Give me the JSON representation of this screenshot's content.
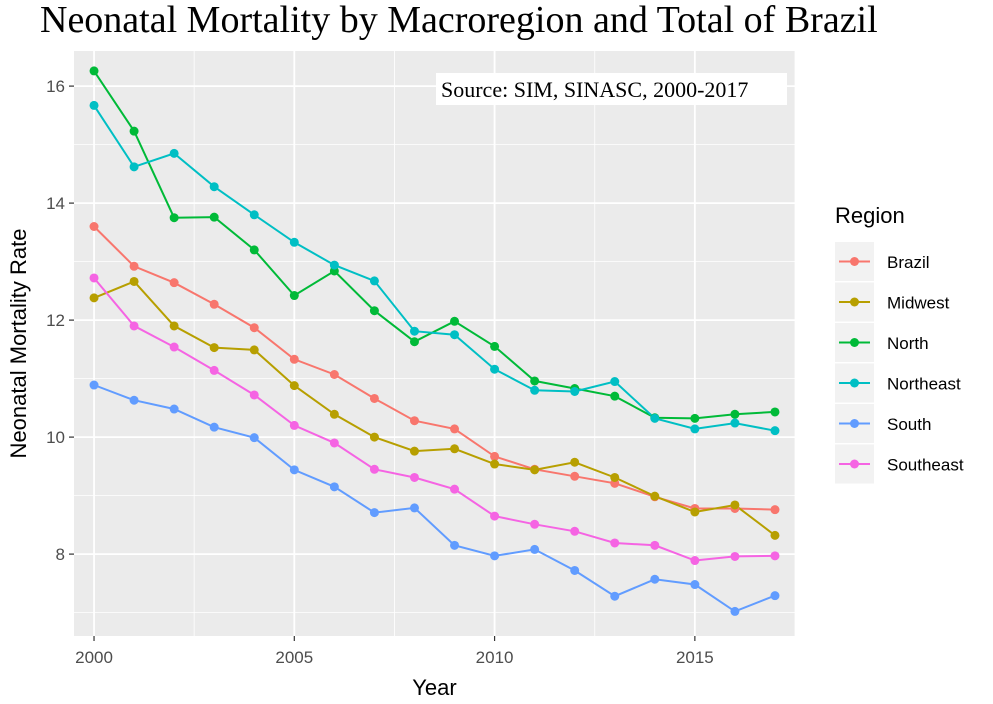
{
  "chart_data": {
    "type": "line",
    "title": "Neonatal Mortality by Macroregion and Total of Brazil",
    "annotation": "Source: SIM, SINASC, 2000-2017",
    "xlabel": "Year",
    "ylabel": "Neonatal Mortality Rate",
    "xlim": [
      1999.5,
      2017.5
    ],
    "ylim": [
      6.6,
      16.6
    ],
    "x_ticks": [
      2000,
      2005,
      2010,
      2015
    ],
    "y_ticks": [
      8,
      10,
      12,
      14,
      16
    ],
    "grid": true,
    "legend_title": "Region",
    "legend_position": "right",
    "x": [
      2000,
      2001,
      2002,
      2003,
      2004,
      2005,
      2006,
      2007,
      2008,
      2009,
      2010,
      2011,
      2012,
      2013,
      2014,
      2015,
      2016,
      2017
    ],
    "series": [
      {
        "name": "Brazil",
        "color": "#F8766D",
        "values": [
          13.6,
          12.92,
          12.64,
          12.27,
          11.87,
          11.33,
          11.07,
          10.66,
          10.28,
          10.14,
          9.67,
          9.45,
          9.33,
          9.21,
          8.98,
          8.78,
          8.78,
          8.76
        ]
      },
      {
        "name": "Midwest",
        "color": "#B79F00",
        "values": [
          12.38,
          12.66,
          11.9,
          11.53,
          11.49,
          10.88,
          10.39,
          10.0,
          9.76,
          9.8,
          9.54,
          9.44,
          9.57,
          9.31,
          8.99,
          8.72,
          8.84,
          8.32
        ]
      },
      {
        "name": "North",
        "color": "#00BA38",
        "values": [
          16.26,
          15.23,
          13.75,
          13.76,
          13.2,
          12.42,
          12.84,
          12.16,
          11.63,
          11.98,
          11.55,
          10.96,
          10.83,
          10.7,
          10.33,
          10.32,
          10.39,
          10.43
        ]
      },
      {
        "name": "Northeast",
        "color": "#00BFC4",
        "values": [
          15.67,
          14.62,
          14.85,
          14.28,
          13.8,
          13.33,
          12.94,
          12.67,
          11.81,
          11.75,
          11.16,
          10.8,
          10.78,
          10.95,
          10.32,
          10.14,
          10.24,
          10.11
        ]
      },
      {
        "name": "South",
        "color": "#619CFF",
        "values": [
          10.89,
          10.63,
          10.48,
          10.17,
          9.99,
          9.44,
          9.15,
          8.71,
          8.79,
          8.15,
          7.97,
          8.08,
          7.72,
          7.28,
          7.57,
          7.48,
          7.02,
          7.29
        ]
      },
      {
        "name": "Southeast",
        "color": "#F564E3",
        "values": [
          12.72,
          11.9,
          11.54,
          11.14,
          10.72,
          10.2,
          9.9,
          9.45,
          9.31,
          9.11,
          8.65,
          8.51,
          8.39,
          8.19,
          8.15,
          7.89,
          7.96,
          7.97
        ]
      }
    ]
  }
}
